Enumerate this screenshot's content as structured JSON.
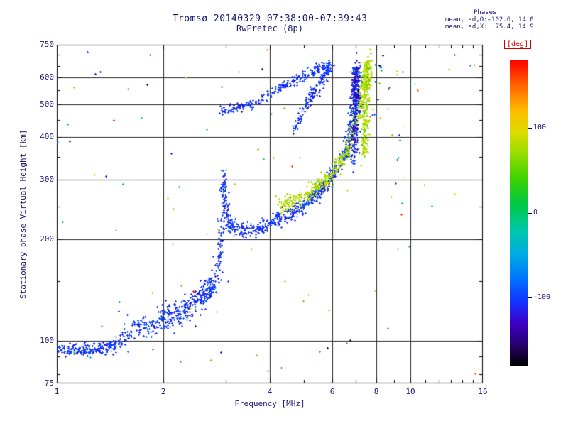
{
  "chart_data": {
    "type": "scatter",
    "title": "Tromsø 20140329 07:38:00-07:39:43",
    "subtitle": "RwPretec (8p)",
    "xlabel": "Frequency [MHz]",
    "ylabel": "Stationary phase Virtual Height [km]",
    "xscale": "log",
    "yscale": "log",
    "xlim": [
      1,
      16
    ],
    "ylim": [
      75,
      750
    ],
    "grid": true,
    "x_ticks": [
      {
        "value": 1,
        "label": "1"
      },
      {
        "value": 2,
        "label": "2"
      },
      {
        "value": 4,
        "label": "4"
      },
      {
        "value": 6,
        "label": "6"
      },
      {
        "value": 8,
        "label": "8"
      },
      {
        "value": 10,
        "label": "10"
      },
      {
        "value": 16,
        "label": "16"
      }
    ],
    "y_ticks": [
      {
        "value": 750,
        "label": "750"
      },
      {
        "value": 600,
        "label": "600"
      },
      {
        "value": 500,
        "label": "500"
      },
      {
        "value": 400,
        "label": "400"
      },
      {
        "value": 300,
        "label": "300"
      },
      {
        "value": 200,
        "label": "200"
      },
      {
        "value": 100,
        "label": "100"
      },
      {
        "value": 75,
        "label": "75"
      }
    ],
    "grid_x": [
      2,
      4,
      6,
      8,
      10
    ],
    "grid_y": [
      100,
      200,
      300,
      400,
      500,
      600
    ],
    "x_minor": [
      3,
      5,
      7,
      9,
      11,
      12,
      13,
      14,
      15
    ],
    "y_minor": [
      80,
      90,
      150,
      250,
      350,
      450,
      550,
      650,
      700
    ],
    "stats": {
      "heading": "Phases",
      "line_o": "mean, sd,O:-102.6, 14.0",
      "line_x": "mean, sd,X:  75.4, 14.9"
    },
    "colorbar": {
      "label": "[deg]",
      "label_color": "#d00000",
      "vmin": -180,
      "vmax": 180,
      "ticks": [
        {
          "value": 100,
          "label": "100"
        },
        {
          "value": 0,
          "label": "0"
        },
        {
          "value": -100,
          "label": "-100"
        }
      ],
      "colormap": [
        [
          -180,
          "#000000"
        ],
        [
          -155,
          "#28006e"
        ],
        [
          -130,
          "#3c00c8"
        ],
        [
          -105,
          "#1432ff"
        ],
        [
          -80,
          "#006eff"
        ],
        [
          -50,
          "#00aae6"
        ],
        [
          -20,
          "#00c8aa"
        ],
        [
          10,
          "#00c846"
        ],
        [
          40,
          "#3cd200"
        ],
        [
          70,
          "#96dc00"
        ],
        [
          95,
          "#dcdc00"
        ],
        [
          120,
          "#ffbe00"
        ],
        [
          150,
          "#ff6400"
        ],
        [
          180,
          "#ff0000"
        ]
      ]
    },
    "series": [
      {
        "name": "e-region-trace-low",
        "kind": "path",
        "n": 200,
        "phase_mean": -103,
        "phase_sd": 8,
        "jitter_logf": 0.012,
        "jitter_logh": 0.009,
        "path": [
          [
            1.02,
            95
          ],
          [
            1.1,
            94
          ],
          [
            1.2,
            94
          ],
          [
            1.32,
            95
          ],
          [
            1.42,
            96
          ],
          [
            1.5,
            99
          ]
        ]
      },
      {
        "name": "e-region-trace-mid",
        "kind": "path",
        "n": 240,
        "phase_mean": -103,
        "phase_sd": 10,
        "jitter_logf": 0.014,
        "jitter_logh": 0.02,
        "path": [
          [
            1.55,
            103
          ],
          [
            1.65,
            108
          ],
          [
            1.78,
            112
          ],
          [
            1.9,
            110
          ],
          [
            2.0,
            117
          ],
          [
            2.1,
            121
          ],
          [
            2.2,
            118
          ],
          [
            2.3,
            125
          ],
          [
            2.38,
            128
          ]
        ]
      },
      {
        "name": "e-region-trace-high",
        "kind": "path",
        "n": 150,
        "phase_mean": -103,
        "phase_sd": 10,
        "jitter_logf": 0.01,
        "jitter_logh": 0.016,
        "path": [
          [
            2.38,
            128
          ],
          [
            2.5,
            133
          ],
          [
            2.6,
            138
          ],
          [
            2.7,
            143
          ],
          [
            2.8,
            150
          ]
        ]
      },
      {
        "name": "e-f-cusp",
        "kind": "path",
        "n": 140,
        "phase_mean": -104,
        "phase_sd": 10,
        "jitter_logf": 0.005,
        "jitter_logh": 0.02,
        "path": [
          [
            2.83,
            158
          ],
          [
            2.87,
            175
          ],
          [
            2.9,
            200
          ],
          [
            2.92,
            230
          ],
          [
            2.94,
            262
          ],
          [
            2.96,
            292
          ],
          [
            2.97,
            300
          ],
          [
            2.99,
            270
          ],
          [
            3.01,
            245
          ],
          [
            3.04,
            228
          ]
        ]
      },
      {
        "name": "f-region-o-trace",
        "kind": "path",
        "n": 650,
        "phase_mean": -103,
        "phase_sd": 9,
        "jitter_logf": 0.006,
        "jitter_logh": 0.011,
        "path": [
          [
            3.05,
            221
          ],
          [
            3.2,
            216
          ],
          [
            3.4,
            213
          ],
          [
            3.6,
            214
          ],
          [
            3.8,
            218
          ],
          [
            4.0,
            223
          ],
          [
            4.2,
            228
          ],
          [
            4.4,
            234
          ],
          [
            4.6,
            240
          ],
          [
            4.8,
            247
          ],
          [
            5.0,
            254
          ],
          [
            5.2,
            262
          ],
          [
            5.4,
            271
          ],
          [
            5.6,
            281
          ],
          [
            5.8,
            293
          ],
          [
            6.0,
            307
          ],
          [
            6.2,
            324
          ],
          [
            6.4,
            346
          ],
          [
            6.55,
            366
          ],
          [
            6.7,
            394
          ],
          [
            6.8,
            425
          ],
          [
            6.88,
            462
          ],
          [
            6.94,
            510
          ],
          [
            6.98,
            565
          ],
          [
            7.01,
            620
          ],
          [
            7.03,
            650
          ]
        ]
      },
      {
        "name": "f-region-x-trace",
        "kind": "path",
        "n": 520,
        "phase_mean": 75,
        "phase_sd": 12,
        "jitter_logf": 0.006,
        "jitter_logh": 0.011,
        "path": [
          [
            4.25,
            250
          ],
          [
            4.5,
            256
          ],
          [
            4.75,
            262
          ],
          [
            5.0,
            269
          ],
          [
            5.25,
            277
          ],
          [
            5.5,
            287
          ],
          [
            5.75,
            298
          ],
          [
            6.0,
            312
          ],
          [
            6.2,
            327
          ],
          [
            6.4,
            346
          ],
          [
            6.6,
            370
          ],
          [
            6.8,
            400
          ],
          [
            6.95,
            432
          ],
          [
            7.1,
            470
          ],
          [
            7.22,
            512
          ],
          [
            7.32,
            556
          ],
          [
            7.42,
            605
          ],
          [
            7.5,
            645
          ],
          [
            7.54,
            660
          ]
        ]
      },
      {
        "name": "second-hop-arc",
        "kind": "path",
        "n": 240,
        "phase_mean": -103,
        "phase_sd": 10,
        "jitter_logf": 0.007,
        "jitter_logh": 0.007,
        "path": [
          [
            2.9,
            478
          ],
          [
            3.1,
            486
          ],
          [
            3.3,
            492
          ],
          [
            3.5,
            498
          ],
          [
            3.7,
            510
          ],
          [
            3.9,
            526
          ],
          [
            4.1,
            543
          ],
          [
            4.3,
            560
          ],
          [
            4.5,
            576
          ],
          [
            4.7,
            591
          ],
          [
            4.9,
            605
          ],
          [
            5.1,
            618
          ],
          [
            5.3,
            630
          ],
          [
            5.5,
            641
          ],
          [
            5.7,
            650
          ],
          [
            5.9,
            658
          ]
        ]
      },
      {
        "name": "second-hop-steep",
        "kind": "path",
        "n": 160,
        "phase_mean": -103,
        "phase_sd": 10,
        "jitter_logf": 0.006,
        "jitter_logh": 0.01,
        "path": [
          [
            4.7,
            430
          ],
          [
            4.9,
            465
          ],
          [
            5.1,
            500
          ],
          [
            5.3,
            535
          ],
          [
            5.5,
            570
          ],
          [
            5.7,
            605
          ],
          [
            5.85,
            635
          ],
          [
            5.95,
            658
          ]
        ]
      },
      {
        "name": "o-critical-band",
        "kind": "path",
        "n": 260,
        "phase_mean": -115,
        "phase_sd": 18,
        "jitter_logf": 0.006,
        "jitter_logh": 0.02,
        "path": [
          [
            6.9,
            340
          ],
          [
            6.93,
            400
          ],
          [
            6.96,
            460
          ],
          [
            6.99,
            520
          ],
          [
            7.02,
            580
          ],
          [
            7.05,
            640
          ]
        ]
      },
      {
        "name": "x-critical-band",
        "kind": "path",
        "n": 210,
        "phase_mean": 75,
        "phase_sd": 15,
        "jitter_logf": 0.005,
        "jitter_logh": 0.02,
        "path": [
          [
            7.35,
            360
          ],
          [
            7.4,
            420
          ],
          [
            7.45,
            480
          ],
          [
            7.5,
            540
          ],
          [
            7.55,
            600
          ],
          [
            7.6,
            655
          ]
        ]
      },
      {
        "name": "top-right-scatter",
        "kind": "uniform",
        "n": 18,
        "phase_range": [
          -180,
          180
        ],
        "f_range": [
          7.6,
          8.8
        ],
        "h_range": [
          450,
          700
        ]
      },
      {
        "name": "sporadic-column",
        "kind": "uniform",
        "n": 14,
        "phase_range": [
          -180,
          180
        ],
        "f_range": [
          8.5,
          10.5
        ],
        "h_range": [
          100,
          700
        ]
      },
      {
        "name": "outliers",
        "kind": "uniform",
        "n": 85,
        "phase_range": [
          -180,
          180
        ],
        "f_range": [
          1.0,
          15.5
        ],
        "h_range": [
          80,
          730
        ]
      }
    ]
  }
}
